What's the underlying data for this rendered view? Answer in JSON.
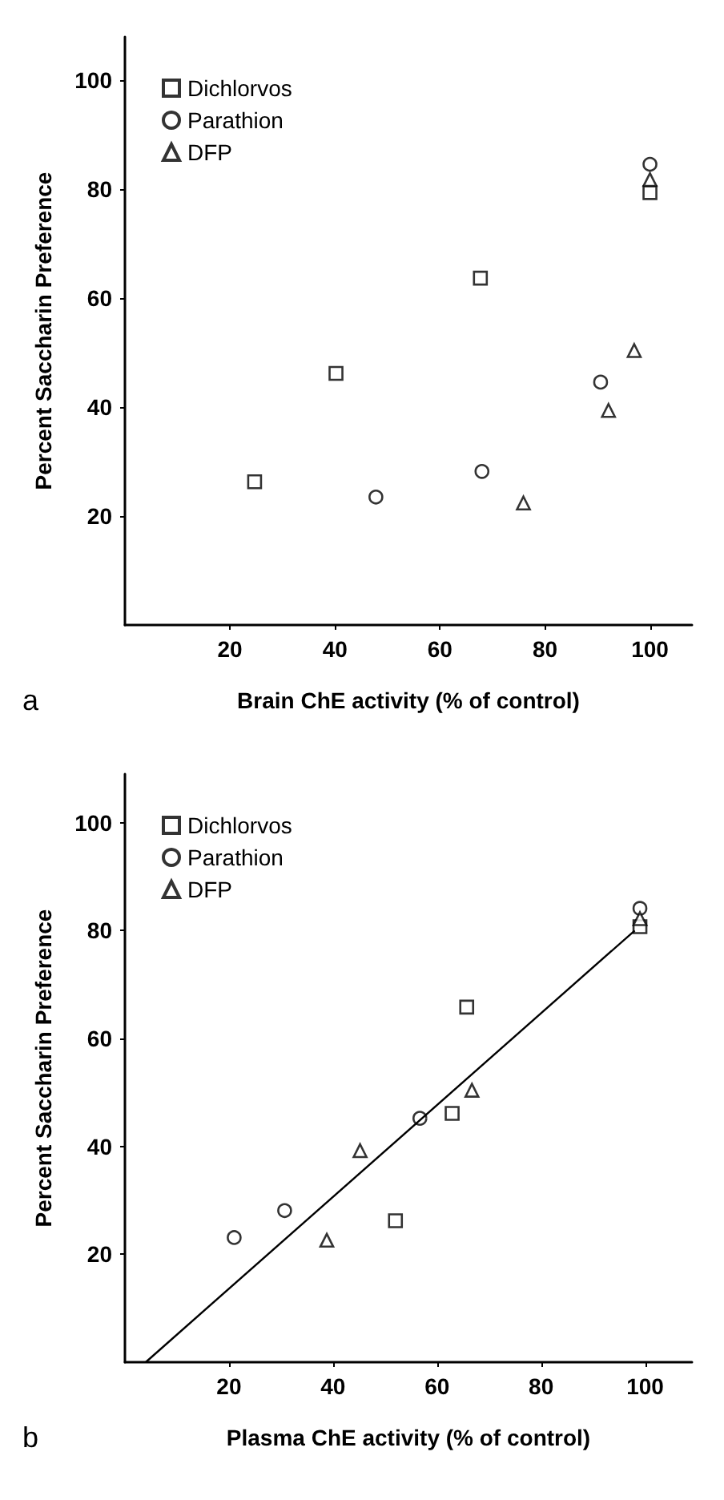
{
  "chart_data": [
    {
      "type": "scatter",
      "xlabel": "Brain ChE activity (% of control)",
      "ylabel": "Percent Saccharin Preference",
      "annotations": [
        "a"
      ],
      "xlim": [
        0,
        108
      ],
      "ylim": [
        0,
        108
      ],
      "xticks": [
        20,
        40,
        60,
        80,
        100
      ],
      "yticks": [
        20,
        40,
        60,
        80,
        100
      ],
      "grid": false,
      "legend": "top left",
      "series": [
        {
          "name": "Dichlorvos",
          "color": "#000000",
          "marker": "square",
          "x": [
            24.7,
            40.2,
            67.7,
            100
          ],
          "values": [
            26.3,
            46.2,
            63.7,
            79.4
          ]
        },
        {
          "name": "Parathion",
          "color": "#000000",
          "marker": "circle",
          "x": [
            47.8,
            68,
            90.6,
            100
          ],
          "values": [
            23.5,
            28.2,
            44.6,
            84.6
          ]
        },
        {
          "name": "DFP",
          "color": "#000000",
          "marker": "triangle",
          "x": [
            75.9,
            92.1,
            97,
            100
          ],
          "values": [
            22.4,
            39.4,
            50.4,
            81.8
          ]
        }
      ]
    },
    {
      "type": "scatter",
      "xlabel": "Plasma ChE activity (% of control)",
      "ylabel": "Percent Saccharin Preference",
      "annotations": [
        "b"
      ],
      "xlim": [
        0,
        109
      ],
      "ylim": [
        0,
        109
      ],
      "xticks": [
        20,
        40,
        60,
        80,
        100
      ],
      "yticks": [
        20,
        40,
        60,
        80,
        100
      ],
      "grid": false,
      "legend": "top left",
      "series": [
        {
          "name": "Dichlorvos",
          "color": "#000000",
          "marker": "square",
          "x": [
            65.7,
            62.9,
            52,
            99
          ],
          "values": [
            65.8,
            46.1,
            26.2,
            80.7
          ]
        },
        {
          "name": "Parathion",
          "color": "#000000",
          "marker": "circle",
          "x": [
            21,
            30.7,
            56.7,
            99
          ],
          "values": [
            23.1,
            28.1,
            45.2,
            84.1
          ]
        },
        {
          "name": "DFP",
          "color": "#000000",
          "marker": "triangle",
          "x": [
            38.8,
            45.2,
            66.7,
            99
          ],
          "values": [
            22.6,
            39.2,
            50.4,
            82.2
          ]
        },
        {
          "type": "line",
          "color": "#000000",
          "marker": "none",
          "line_style": "solid",
          "x": [
            4,
            98
          ],
          "values": [
            0,
            80
          ]
        }
      ]
    }
  ]
}
